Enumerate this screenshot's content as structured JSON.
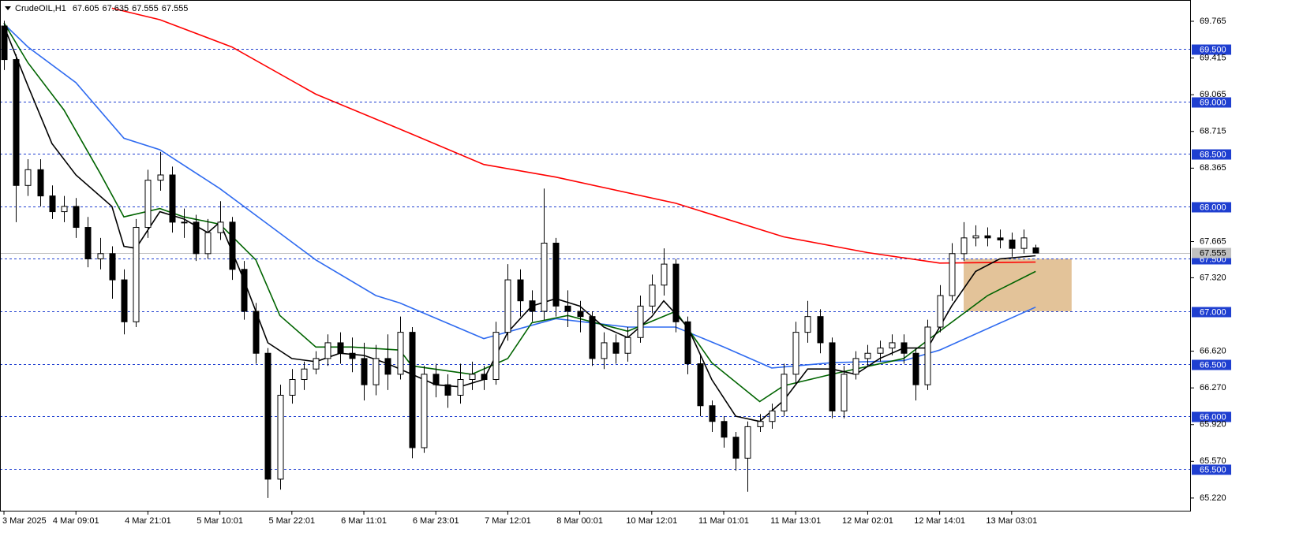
{
  "chart_data": {
    "type": "candlestick",
    "header": {
      "symbol": "CrudeOIL,H1",
      "ohlc": [
        67.605,
        67.635,
        67.555,
        67.555
      ]
    },
    "open": [
      69.72,
      69.4,
      68.2,
      68.35,
      68.1,
      67.95,
      68.0,
      67.8,
      67.5,
      67.55,
      67.3,
      66.9,
      67.8,
      68.25,
      68.3,
      67.85,
      67.85,
      67.55,
      67.75,
      67.85,
      67.4,
      67.0,
      66.6,
      65.4,
      66.2,
      66.35,
      66.45,
      66.55,
      66.7,
      66.6,
      66.55,
      66.3,
      66.55,
      66.4,
      66.8,
      65.7,
      66.4,
      66.3,
      66.2,
      66.35,
      66.4,
      66.35,
      66.8,
      67.3,
      67.1,
      67.0,
      67.65,
      67.05,
      67.0,
      66.95,
      66.55,
      66.7,
      66.6,
      66.75,
      67.05,
      67.25,
      67.45,
      66.9,
      66.5,
      66.1,
      65.95,
      65.8,
      65.6,
      65.9,
      65.95,
      66.05,
      66.4,
      66.8,
      66.95,
      66.7,
      66.05,
      66.4,
      66.55,
      66.6,
      66.65,
      66.7,
      66.6,
      66.3,
      66.85,
      67.15,
      67.55,
      67.7,
      67.72,
      67.7,
      67.68,
      67.6,
      67.605
    ],
    "high": [
      69.77,
      69.45,
      68.45,
      68.45,
      68.2,
      68.1,
      68.08,
      67.9,
      67.7,
      67.62,
      67.4,
      67.88,
      68.35,
      68.52,
      68.38,
      67.98,
      67.92,
      67.88,
      68.05,
      67.9,
      67.48,
      67.08,
      66.65,
      66.3,
      66.45,
      66.52,
      66.62,
      66.78,
      66.8,
      66.75,
      66.7,
      66.68,
      66.78,
      66.95,
      66.85,
      66.48,
      66.5,
      66.4,
      66.5,
      66.52,
      66.48,
      66.9,
      67.45,
      67.4,
      67.2,
      68.17,
      67.7,
      67.2,
      67.1,
      67.0,
      66.8,
      66.78,
      66.85,
      67.15,
      67.35,
      67.6,
      67.5,
      66.95,
      66.58,
      66.15,
      66.0,
      65.85,
      65.95,
      66.02,
      66.12,
      66.5,
      66.9,
      67.1,
      67.02,
      66.75,
      66.48,
      66.62,
      66.68,
      66.72,
      66.78,
      66.78,
      66.65,
      66.92,
      67.25,
      67.65,
      67.85,
      67.82,
      67.8,
      67.78,
      67.75,
      67.78,
      67.635
    ],
    "low": [
      69.3,
      67.85,
      68.1,
      68.0,
      67.88,
      67.85,
      67.7,
      67.42,
      67.4,
      67.12,
      66.78,
      66.85,
      67.7,
      68.15,
      67.75,
      67.7,
      67.48,
      67.5,
      67.68,
      67.3,
      66.92,
      66.5,
      65.22,
      65.3,
      66.12,
      66.25,
      66.4,
      66.48,
      66.5,
      66.42,
      66.15,
      66.2,
      66.25,
      66.35,
      65.6,
      65.65,
      66.18,
      66.08,
      66.12,
      66.25,
      66.25,
      66.3,
      66.72,
      66.95,
      66.9,
      66.92,
      66.95,
      66.85,
      66.8,
      66.48,
      66.45,
      66.5,
      66.52,
      66.7,
      66.98,
      67.15,
      66.8,
      66.4,
      66.0,
      65.85,
      65.7,
      65.48,
      65.28,
      65.85,
      65.88,
      66.0,
      66.3,
      66.7,
      66.6,
      65.98,
      65.98,
      66.35,
      66.48,
      66.52,
      66.58,
      66.5,
      66.15,
      66.25,
      66.8,
      67.1,
      67.48,
      67.62,
      67.62,
      67.6,
      67.52,
      67.55,
      67.555
    ],
    "close": [
      69.4,
      68.2,
      68.35,
      68.1,
      67.95,
      68.0,
      67.8,
      67.5,
      67.55,
      67.3,
      66.9,
      67.8,
      68.25,
      68.3,
      67.85,
      67.85,
      67.55,
      67.75,
      67.85,
      67.4,
      67.0,
      66.6,
      65.4,
      66.2,
      66.35,
      66.45,
      66.55,
      66.7,
      66.6,
      66.55,
      66.3,
      66.55,
      66.4,
      66.8,
      65.7,
      66.4,
      66.3,
      66.2,
      66.35,
      66.4,
      66.35,
      66.8,
      67.3,
      67.1,
      67.0,
      67.65,
      67.05,
      67.0,
      66.95,
      66.55,
      66.7,
      66.6,
      66.75,
      67.05,
      67.25,
      67.45,
      66.9,
      66.5,
      66.1,
      65.95,
      65.8,
      65.6,
      65.9,
      65.95,
      66.05,
      66.4,
      66.8,
      66.95,
      66.7,
      66.05,
      66.4,
      66.55,
      66.6,
      66.65,
      66.7,
      66.6,
      66.3,
      66.85,
      67.15,
      67.55,
      67.7,
      67.72,
      67.7,
      67.68,
      67.6,
      67.7,
      67.555
    ],
    "series": [
      {
        "color": "#ff0000",
        "x": [
          9,
          13,
          19,
          26,
          34,
          40,
          46,
          56,
          65,
          72,
          78,
          86
        ],
        "values": [
          69.89,
          69.78,
          69.52,
          69.07,
          68.69,
          68.4,
          68.28,
          68.03,
          67.71,
          67.56,
          67.46,
          67.47
        ]
      },
      {
        "color": "#2f6bf0",
        "x": [
          0,
          2,
          6,
          10,
          13,
          18,
          22,
          26,
          31,
          33,
          40,
          46,
          52,
          56,
          60,
          64,
          69,
          75,
          78,
          86
        ],
        "values": [
          69.74,
          69.52,
          69.18,
          68.65,
          68.54,
          68.17,
          67.83,
          67.49,
          67.15,
          67.08,
          66.74,
          66.93,
          66.85,
          66.85,
          66.66,
          66.46,
          66.51,
          66.53,
          66.63,
          67.04
        ]
      },
      {
        "color": "#006400",
        "x": [
          0,
          2,
          5,
          8,
          10,
          13,
          15,
          18,
          21,
          23,
          26,
          29,
          33,
          34,
          39,
          42,
          44,
          47,
          52,
          56,
          59,
          63,
          65,
          69,
          75,
          78,
          82,
          86
        ],
        "values": [
          69.75,
          69.37,
          68.92,
          68.32,
          67.9,
          67.98,
          67.9,
          67.83,
          67.49,
          66.96,
          66.66,
          66.66,
          66.63,
          66.48,
          66.4,
          66.55,
          66.89,
          66.96,
          66.81,
          67.0,
          66.51,
          66.14,
          66.29,
          66.4,
          66.55,
          66.81,
          67.15,
          67.38
        ]
      },
      {
        "color": "#000000",
        "x": [
          0,
          2,
          4,
          6,
          9,
          10,
          11,
          13,
          15,
          17,
          18,
          20,
          22,
          24,
          26,
          28,
          30,
          32,
          34,
          36,
          38,
          40,
          42,
          44,
          46,
          48,
          50,
          52,
          54,
          55,
          57,
          59,
          61,
          63,
          65,
          67,
          69,
          71,
          73,
          75,
          77,
          79,
          81,
          83,
          86
        ],
        "values": [
          69.72,
          69.15,
          68.6,
          68.3,
          68.0,
          67.62,
          67.6,
          67.95,
          67.88,
          67.75,
          67.85,
          67.3,
          66.7,
          66.55,
          66.52,
          66.6,
          66.58,
          66.5,
          66.4,
          66.3,
          66.28,
          66.35,
          66.8,
          67.05,
          67.12,
          67.05,
          66.85,
          66.75,
          66.95,
          67.1,
          66.85,
          66.35,
          66.0,
          65.95,
          66.15,
          66.45,
          66.45,
          66.4,
          66.55,
          66.65,
          66.65,
          67.05,
          67.38,
          67.5,
          67.53
        ]
      }
    ],
    "zone": {
      "x": [
        80,
        89
      ],
      "y": [
        67.0,
        67.5
      ],
      "color": "#deb887"
    },
    "last_price": 67.555,
    "levels": [
      {
        "value": 69.5,
        "label": "69.500"
      },
      {
        "value": 69.0,
        "label": "69.000"
      },
      {
        "value": 68.5,
        "label": "68.500"
      },
      {
        "value": 68.0,
        "label": "68.000"
      },
      {
        "value": 67.5,
        "label": "67.500"
      },
      {
        "value": 67.0,
        "label": "67.000"
      },
      {
        "value": 66.5,
        "label": "66.500"
      },
      {
        "value": 66.0,
        "label": "66.000"
      },
      {
        "value": 65.5,
        "label": "65.500"
      }
    ],
    "xlim": [
      -0.33,
      98.88
    ],
    "ylim": [
      65.099,
      69.968
    ],
    "yticks": [
      69.765,
      69.415,
      69.065,
      68.715,
      68.365,
      67.665,
      {
        "value": 67.32,
        "label": "67.320"
      },
      {
        "value": 66.62,
        "label": "66.620"
      },
      {
        "value": 66.27,
        "label": "66.270"
      },
      {
        "value": 65.92,
        "label": "65.920"
      },
      {
        "value": 65.57,
        "label": "65.570"
      },
      {
        "value": 65.22,
        "label": "65.220"
      }
    ],
    "xticks": [
      {
        "value": 0,
        "label": "3 Mar 2025"
      },
      {
        "value": 6,
        "label": "4 Mar 09:01"
      },
      {
        "value": 12,
        "label": "4 Mar 21:01"
      },
      {
        "value": 18,
        "label": "5 Mar 10:01"
      },
      {
        "value": 24,
        "label": "5 Mar 22:01"
      },
      {
        "value": 30,
        "label": "6 Mar 11:01"
      },
      {
        "value": 36,
        "label": "6 Mar 23:01"
      },
      {
        "value": 42,
        "label": "7 Mar 12:01"
      },
      {
        "value": 48,
        "label": "8 Mar 00:01"
      },
      {
        "value": 54,
        "label": "10 Mar 12:01"
      },
      {
        "value": 60,
        "label": "11 Mar 01:01"
      },
      {
        "value": 66,
        "label": "11 Mar 13:01"
      },
      {
        "value": 72,
        "label": "12 Mar 02:01"
      },
      {
        "value": 78,
        "label": "12 Mar 14:01"
      },
      {
        "value": 84,
        "label": "13 Mar 03:01"
      }
    ]
  }
}
